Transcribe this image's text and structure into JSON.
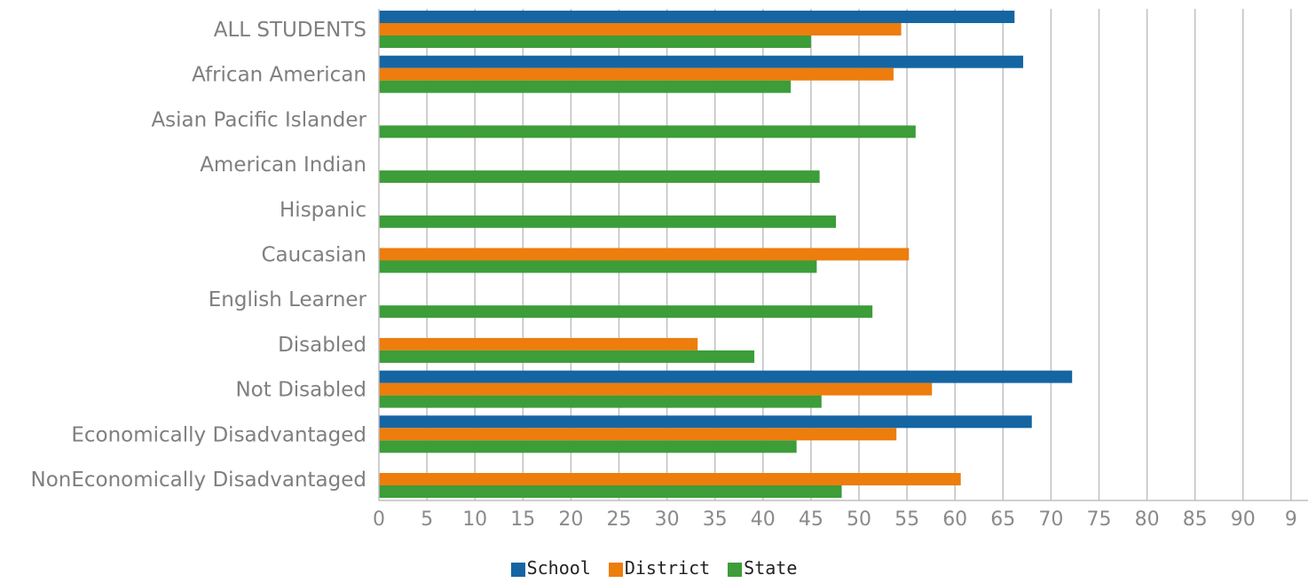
{
  "chart_data": {
    "type": "bar",
    "orientation": "horizontal",
    "categories": [
      "ALL STUDENTS",
      "African American",
      "Asian Pacific Islander",
      "American Indian",
      "Hispanic",
      "Caucasian",
      "English Learner",
      "Disabled",
      "Not Disabled",
      "Economically Disadvantaged",
      "NonEconomically Disadvantaged"
    ],
    "series": [
      {
        "name": "School",
        "color": "#1565a3",
        "values": [
          66.2,
          67.1,
          null,
          null,
          null,
          null,
          null,
          null,
          72.2,
          68.0,
          null
        ]
      },
      {
        "name": "District",
        "color": "#ed7d0d",
        "values": [
          54.4,
          53.6,
          null,
          null,
          null,
          55.2,
          null,
          33.2,
          57.6,
          53.9,
          60.6
        ]
      },
      {
        "name": "State",
        "color": "#3c9d39",
        "values": [
          45.0,
          42.9,
          55.9,
          45.9,
          47.6,
          45.6,
          51.4,
          39.1,
          46.1,
          43.5,
          48.2
        ]
      }
    ],
    "xlim": [
      0,
      95
    ],
    "xticks": [
      "0",
      "5",
      "10",
      "15",
      "20",
      "25",
      "30",
      "35",
      "40",
      "45",
      "50",
      "55",
      "60",
      "65",
      "70",
      "75",
      "80",
      "85",
      "90",
      "9"
    ],
    "grid": "vertical",
    "legend_position": "bottom"
  }
}
